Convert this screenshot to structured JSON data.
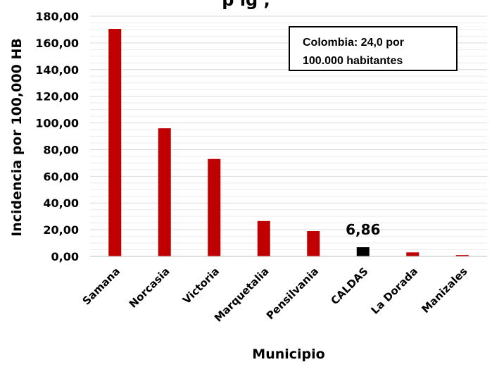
{
  "chart_data": {
    "type": "bar",
    "title": "",
    "xlabel": "Municipio",
    "ylabel": "Incidencia por 100,000 HB",
    "categories": [
      "Samana",
      "Norcasia",
      "Victoria",
      "Marquetalia",
      "Pensilvania",
      "CALDAS",
      "La Dorada",
      "Manizales"
    ],
    "values": [
      170.5,
      96.0,
      73.0,
      26.5,
      19.0,
      6.86,
      3.0,
      1.0
    ],
    "ylim": [
      0,
      180
    ],
    "yticks": [
      "0,00",
      "20,00",
      "40,00",
      "60,00",
      "80,00",
      "100,00",
      "120,00",
      "140,00",
      "160,00",
      "180,00"
    ],
    "highlight": {
      "category": "CALDAS",
      "label": "6,86",
      "color": "#000000"
    },
    "bar_color": "#c00000",
    "annotation": [
      "Colombia: 24,0 por",
      "100.000 habitantes"
    ],
    "grid": true,
    "legend": "none"
  },
  "title_fragment": "p            ig            ,"
}
